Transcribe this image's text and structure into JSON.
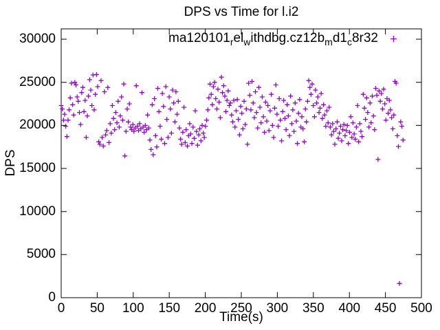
{
  "title": "DPS vs Time for l.i2",
  "chart_data": {
    "type": "scatter",
    "title": "DPS vs Time for l.i2",
    "xlabel": "Time(s)",
    "ylabel": "DPS",
    "xlim": [
      0,
      500
    ],
    "ylim": [
      0,
      31200
    ],
    "xticks": [
      0,
      50,
      100,
      150,
      200,
      250,
      300,
      350,
      400,
      450,
      500
    ],
    "yticks": [
      0,
      5000,
      10000,
      15000,
      20000,
      25000,
      30000
    ],
    "grid": false,
    "legend": {
      "position": "top-right-inside",
      "label_plain": "ma120101_rel_withdbg.cz12b_md1_c8r32",
      "label_parts": [
        {
          "t": "ma120101"
        },
        {
          "t": "r",
          "sub": true
        },
        {
          "t": "el"
        },
        {
          "t": "w",
          "sub": true
        },
        {
          "t": "ithdbg.cz12b"
        },
        {
          "t": "m",
          "sub": true
        },
        {
          "t": "d1"
        },
        {
          "t": "c",
          "sub": true
        },
        {
          "t": "8r32"
        }
      ]
    },
    "marker": {
      "shape": "plus",
      "color": "#9400D3",
      "size": 7
    },
    "points": [
      [
        0,
        22300
      ],
      [
        1.6,
        21900
      ],
      [
        3.2,
        20600
      ],
      [
        4.7,
        21300
      ],
      [
        6.3,
        19900
      ],
      [
        7.9,
        18700
      ],
      [
        9.5,
        20600
      ],
      [
        11,
        21800
      ],
      [
        12.6,
        23200
      ],
      [
        14.2,
        24900
      ],
      [
        15.8,
        22400
      ],
      [
        17.4,
        21200
      ],
      [
        19,
        25000
      ],
      [
        20.5,
        24700
      ],
      [
        22.1,
        23300
      ],
      [
        23.7,
        22800
      ],
      [
        25.3,
        21500
      ],
      [
        26.9,
        20100
      ],
      [
        28.4,
        23800
      ],
      [
        30,
        24400
      ],
      [
        31.6,
        21600
      ],
      [
        33.2,
        22900
      ],
      [
        34.7,
        18600
      ],
      [
        36.3,
        21100
      ],
      [
        37.9,
        23400
      ],
      [
        39.5,
        25300
      ],
      [
        41,
        24100
      ],
      [
        42.6,
        22300
      ],
      [
        44.2,
        25850
      ],
      [
        45.8,
        21800
      ],
      [
        47.4,
        23600
      ],
      [
        49,
        25900
      ],
      [
        50.6,
        24500
      ],
      [
        52.1,
        18100
      ],
      [
        53.7,
        17800
      ],
      [
        55.3,
        25200
      ],
      [
        56.9,
        18600
      ],
      [
        58.4,
        17600
      ],
      [
        60,
        23900
      ],
      [
        61.6,
        18900
      ],
      [
        63.2,
        19400
      ],
      [
        64.7,
        24400
      ],
      [
        66.3,
        18000
      ],
      [
        67.9,
        20200
      ],
      [
        69.5,
        19100
      ],
      [
        71,
        22300
      ],
      [
        72.6,
        20800
      ],
      [
        74.2,
        19500
      ],
      [
        75.8,
        21500
      ],
      [
        77.4,
        20300
      ],
      [
        79,
        22800
      ],
      [
        80.5,
        19800
      ],
      [
        82.1,
        21100
      ],
      [
        83.7,
        23300
      ],
      [
        85.3,
        20600
      ],
      [
        86.8,
        24800
      ],
      [
        88.4,
        16450
      ],
      [
        90,
        19300
      ],
      [
        91.6,
        21900
      ],
      [
        93.1,
        20400
      ],
      [
        94.7,
        22500
      ],
      [
        96.3,
        19800
      ],
      [
        97.9,
        19500
      ],
      [
        99.5,
        20100
      ],
      [
        101,
        19300
      ],
      [
        102.6,
        19700
      ],
      [
        104.2,
        24600
      ],
      [
        105.8,
        19900
      ],
      [
        107.3,
        19400
      ],
      [
        108.9,
        20200
      ],
      [
        110.5,
        19600
      ],
      [
        112.1,
        23800
      ],
      [
        113.6,
        19800
      ],
      [
        115.2,
        19200
      ],
      [
        116.8,
        20000
      ],
      [
        118.4,
        19500
      ],
      [
        119.9,
        21200
      ],
      [
        121.5,
        19700
      ],
      [
        123.1,
        18300
      ],
      [
        124.7,
        17200
      ],
      [
        126.3,
        22400
      ],
      [
        127.8,
        16600
      ],
      [
        129.4,
        23100
      ],
      [
        131,
        18800
      ],
      [
        132.6,
        17500
      ],
      [
        134.1,
        24300
      ],
      [
        135.7,
        21600
      ],
      [
        137.3,
        19900
      ],
      [
        138.9,
        18400
      ],
      [
        140.4,
        23700
      ],
      [
        142,
        22200
      ],
      [
        143.6,
        17900
      ],
      [
        145.2,
        24500
      ],
      [
        146.7,
        20700
      ],
      [
        148.3,
        18600
      ],
      [
        149.9,
        23300
      ],
      [
        151.5,
        21900
      ],
      [
        153,
        19100
      ],
      [
        154.6,
        24100
      ],
      [
        156.2,
        22600
      ],
      [
        157.8,
        20400
      ],
      [
        159.3,
        23900
      ],
      [
        160.9,
        21300
      ],
      [
        162.5,
        22800
      ],
      [
        164.1,
        19700
      ],
      [
        165.7,
        18400
      ],
      [
        167.2,
        17800
      ],
      [
        168.8,
        19200
      ],
      [
        170.4,
        22100
      ],
      [
        172,
        18000
      ],
      [
        173.5,
        19500
      ],
      [
        175.1,
        17600
      ],
      [
        176.7,
        18800
      ],
      [
        178.3,
        20200
      ],
      [
        179.8,
        19000
      ],
      [
        181.4,
        17900
      ],
      [
        183,
        19800
      ],
      [
        184.6,
        18500
      ],
      [
        186.1,
        21700
      ],
      [
        187.7,
        19300
      ],
      [
        189.3,
        17700
      ],
      [
        190.9,
        18900
      ],
      [
        192.4,
        19600
      ],
      [
        194,
        18200
      ],
      [
        195.6,
        20000
      ],
      [
        197.2,
        19100
      ],
      [
        198.7,
        18600
      ],
      [
        200.3,
        19900
      ],
      [
        201.9,
        20600
      ],
      [
        203.5,
        21800
      ],
      [
        205,
        23200
      ],
      [
        206.6,
        24800
      ],
      [
        208.2,
        23600
      ],
      [
        209.8,
        22400
      ],
      [
        211.3,
        24500
      ],
      [
        212.9,
        25000
      ],
      [
        214.5,
        23100
      ],
      [
        216.1,
        21900
      ],
      [
        217.6,
        24200
      ],
      [
        219.2,
        22700
      ],
      [
        220.8,
        20900
      ],
      [
        222.3,
        25600
      ],
      [
        223.9,
        23800
      ],
      [
        225.5,
        24600
      ],
      [
        227.1,
        23400
      ],
      [
        228.6,
        21600
      ],
      [
        230.2,
        22900
      ],
      [
        231.8,
        24000
      ],
      [
        233.3,
        22300
      ],
      [
        234.9,
        22600
      ],
      [
        236.5,
        21200
      ],
      [
        238.1,
        20400
      ],
      [
        239.6,
        22900
      ],
      [
        241.2,
        19800
      ],
      [
        242.8,
        21700
      ],
      [
        244.4,
        23000
      ],
      [
        245.9,
        20700
      ],
      [
        247.5,
        18900
      ],
      [
        249.1,
        22200
      ],
      [
        250.7,
        21400
      ],
      [
        252.2,
        19600
      ],
      [
        253.8,
        22800
      ],
      [
        255.4,
        20100
      ],
      [
        257,
        21900
      ],
      [
        258.5,
        17800
      ],
      [
        260.1,
        24900
      ],
      [
        261.7,
        23500
      ],
      [
        263.3,
        21800
      ],
      [
        264.8,
        25100
      ],
      [
        266.4,
        22600
      ],
      [
        268,
        20900
      ],
      [
        269.6,
        23900
      ],
      [
        271.1,
        21500
      ],
      [
        272.7,
        19700
      ],
      [
        274.3,
        24400
      ],
      [
        275.9,
        22100
      ],
      [
        277.4,
        20300
      ],
      [
        279,
        23300
      ],
      [
        280.6,
        21000
      ],
      [
        282.2,
        19200
      ],
      [
        283.7,
        22700
      ],
      [
        285.3,
        20500
      ],
      [
        286.9,
        22300
      ],
      [
        288.5,
        19400
      ],
      [
        290,
        21700
      ],
      [
        291.6,
        23600
      ],
      [
        293.2,
        20000
      ],
      [
        294.8,
        18600
      ],
      [
        296.3,
        22000
      ],
      [
        297.9,
        24700
      ],
      [
        299.5,
        21300
      ],
      [
        301.1,
        19900
      ],
      [
        302.6,
        23100
      ],
      [
        304.2,
        20600
      ],
      [
        305.8,
        18200
      ],
      [
        307.4,
        21600
      ],
      [
        308.9,
        22900
      ],
      [
        310.5,
        20800
      ],
      [
        312.1,
        19500
      ],
      [
        313.7,
        22400
      ],
      [
        315.2,
        21100
      ],
      [
        316.8,
        18800
      ],
      [
        318.4,
        23400
      ],
      [
        320,
        20200
      ],
      [
        321.5,
        21800
      ],
      [
        323.1,
        19300
      ],
      [
        324.7,
        22600
      ],
      [
        326.3,
        20500
      ],
      [
        327.8,
        17900
      ],
      [
        329.4,
        21400
      ],
      [
        331,
        23000
      ],
      [
        332.6,
        19800
      ],
      [
        334.1,
        21000
      ],
      [
        335.7,
        19600
      ],
      [
        337.3,
        18100
      ],
      [
        338.9,
        21900
      ],
      [
        340.4,
        20400
      ],
      [
        342,
        22800
      ],
      [
        343.6,
        25200
      ],
      [
        345.2,
        24400
      ],
      [
        346.7,
        23600
      ],
      [
        348.3,
        24800
      ],
      [
        349.9,
        22300
      ],
      [
        351.5,
        21000
      ],
      [
        353,
        24100
      ],
      [
        354.6,
        22600
      ],
      [
        356.2,
        23300
      ],
      [
        357.8,
        21500
      ],
      [
        359.3,
        22000
      ],
      [
        360.9,
        23700
      ],
      [
        362.5,
        20800
      ],
      [
        364.1,
        22400
      ],
      [
        365.6,
        21200
      ],
      [
        367.2,
        19900
      ],
      [
        368.8,
        21700
      ],
      [
        370.4,
        20300
      ],
      [
        371.9,
        22100
      ],
      [
        373.5,
        19800
      ],
      [
        375.1,
        18900
      ],
      [
        376.7,
        20200
      ],
      [
        378.2,
        19300
      ],
      [
        379.8,
        17800
      ],
      [
        381.4,
        19600
      ],
      [
        383,
        20400
      ],
      [
        384.5,
        18500
      ],
      [
        386.1,
        19100
      ],
      [
        387.7,
        19900
      ],
      [
        389.3,
        18200
      ],
      [
        390.8,
        19500
      ],
      [
        392.4,
        20100
      ],
      [
        394,
        18800
      ],
      [
        395.6,
        19400
      ],
      [
        397.1,
        20000
      ],
      [
        398.7,
        17900
      ],
      [
        400.3,
        19200
      ],
      [
        401.9,
        21000
      ],
      [
        403.4,
        18600
      ],
      [
        405,
        20300
      ],
      [
        406.6,
        19000
      ],
      [
        408.2,
        18400
      ],
      [
        409.7,
        19800
      ],
      [
        411.3,
        22300
      ],
      [
        412.9,
        18100
      ],
      [
        414.5,
        20200
      ],
      [
        416,
        19300
      ],
      [
        417.6,
        18700
      ],
      [
        419.2,
        23600
      ],
      [
        420.8,
        22000
      ],
      [
        422.3,
        20700
      ],
      [
        423.9,
        23200
      ],
      [
        425.5,
        21500
      ],
      [
        427.1,
        19800
      ],
      [
        428.6,
        22600
      ],
      [
        430.2,
        20300
      ],
      [
        431.8,
        23400
      ],
      [
        433.4,
        21100
      ],
      [
        434.9,
        19500
      ],
      [
        436.5,
        24300
      ],
      [
        438.1,
        23500
      ],
      [
        439.7,
        16050
      ],
      [
        441.2,
        24000
      ],
      [
        442.8,
        22800
      ],
      [
        444.4,
        23700
      ],
      [
        446,
        21900
      ],
      [
        447.5,
        24200
      ],
      [
        449.1,
        22500
      ],
      [
        450.7,
        20600
      ],
      [
        452.3,
        23100
      ],
      [
        453.8,
        21400
      ],
      [
        455.4,
        22900
      ],
      [
        457,
        21800
      ],
      [
        458.6,
        20900
      ],
      [
        460.2,
        19600
      ],
      [
        461.7,
        21200
      ],
      [
        463.3,
        25100
      ],
      [
        464.9,
        24900
      ],
      [
        466.5,
        18800
      ],
      [
        468,
        17550
      ],
      [
        469.6,
        1650
      ],
      [
        471.2,
        20400
      ],
      [
        472.8,
        19900
      ],
      [
        474.4,
        18300
      ]
    ]
  }
}
